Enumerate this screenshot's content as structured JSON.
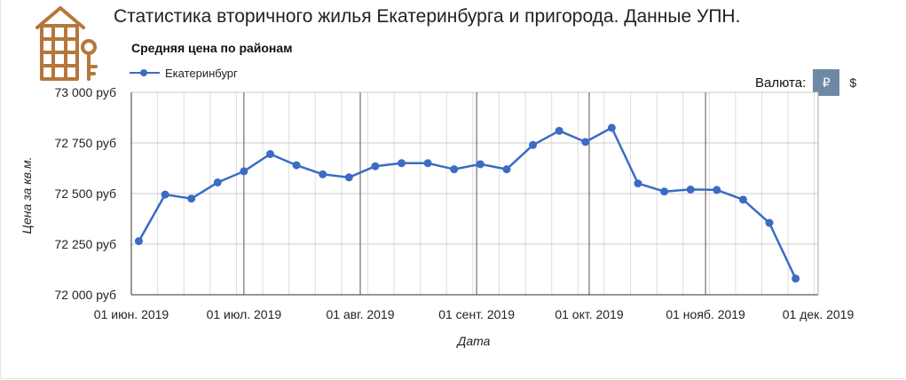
{
  "header": {
    "title": "Статистика вторичного жилья Екатеринбурга и пригорода. Данные УПН."
  },
  "currency": {
    "label": "Валюта:",
    "options": [
      "₽",
      "$"
    ],
    "selected": "₽"
  },
  "colors": {
    "series": "#3b6cc4",
    "logo": "#b5773c",
    "currency_active": "#6e89a5"
  },
  "chart_data": {
    "type": "line",
    "title": "Средняя цена по районам",
    "xlabel": "Дата",
    "ylabel": "Цена за кв.м.",
    "legend_position": "top-left",
    "grid": true,
    "ylim": [
      72000,
      73000
    ],
    "xlim": [
      "2019-06-01",
      "2019-12-01"
    ],
    "y_ticks": [
      "73 000 руб",
      "72 750 руб",
      "72 500 руб",
      "72 250 руб",
      "72 000 руб"
    ],
    "y_tick_values": [
      73000,
      72750,
      72500,
      72250,
      72000
    ],
    "x_ticks": [
      "01 июн. 2019",
      "01 июл. 2019",
      "01 авг. 2019",
      "01 сент. 2019",
      "01 окт. 2019",
      "01 нояб. 2019",
      "01 дек. 2019"
    ],
    "x_tick_dates": [
      "2019-06-01",
      "2019-07-01",
      "2019-08-01",
      "2019-09-01",
      "2019-10-01",
      "2019-11-01",
      "2019-12-01"
    ],
    "series": [
      {
        "name": "Екатеринбург",
        "points": [
          {
            "x": "2019-06-03",
            "y": 72265
          },
          {
            "x": "2019-06-10",
            "y": 72495
          },
          {
            "x": "2019-06-17",
            "y": 72475
          },
          {
            "x": "2019-06-24",
            "y": 72555
          },
          {
            "x": "2019-07-01",
            "y": 72610
          },
          {
            "x": "2019-07-08",
            "y": 72695
          },
          {
            "x": "2019-07-15",
            "y": 72640
          },
          {
            "x": "2019-07-22",
            "y": 72595
          },
          {
            "x": "2019-07-29",
            "y": 72580
          },
          {
            "x": "2019-08-05",
            "y": 72635
          },
          {
            "x": "2019-08-12",
            "y": 72650
          },
          {
            "x": "2019-08-19",
            "y": 72650
          },
          {
            "x": "2019-08-26",
            "y": 72620
          },
          {
            "x": "2019-09-02",
            "y": 72645
          },
          {
            "x": "2019-09-09",
            "y": 72620
          },
          {
            "x": "2019-09-16",
            "y": 72740
          },
          {
            "x": "2019-09-23",
            "y": 72810
          },
          {
            "x": "2019-09-30",
            "y": 72755
          },
          {
            "x": "2019-10-07",
            "y": 72825
          },
          {
            "x": "2019-10-14",
            "y": 72550
          },
          {
            "x": "2019-10-21",
            "y": 72510
          },
          {
            "x": "2019-10-28",
            "y": 72520
          },
          {
            "x": "2019-11-04",
            "y": 72518
          },
          {
            "x": "2019-11-11",
            "y": 72470
          },
          {
            "x": "2019-11-18",
            "y": 72355
          },
          {
            "x": "2019-11-25",
            "y": 72080
          }
        ]
      }
    ]
  }
}
